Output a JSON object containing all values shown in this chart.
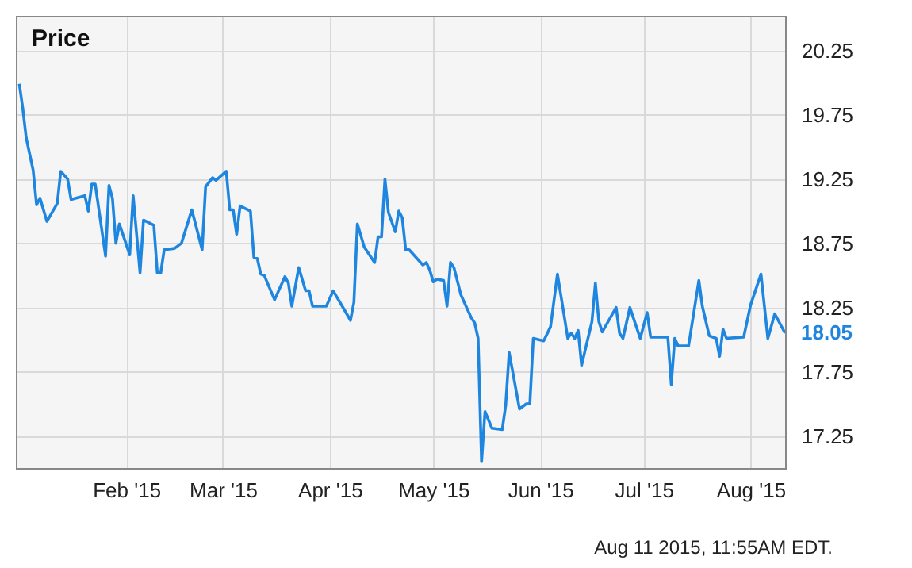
{
  "chart_data": {
    "type": "line",
    "title": "Price",
    "x": [
      "2015-01-01",
      "2015-01-02",
      "2015-01-03",
      "2015-01-05",
      "2015-01-06",
      "2015-01-07",
      "2015-01-09",
      "2015-01-12",
      "2015-01-13",
      "2015-01-15",
      "2015-01-16",
      "2015-01-20",
      "2015-01-21",
      "2015-01-22",
      "2015-01-23",
      "2015-01-26",
      "2015-01-27",
      "2015-01-28",
      "2015-01-29",
      "2015-01-30",
      "2015-02-02",
      "2015-02-03",
      "2015-02-05",
      "2015-02-06",
      "2015-02-09",
      "2015-02-10",
      "2015-02-11",
      "2015-02-12",
      "2015-02-15",
      "2015-02-17",
      "2015-02-20",
      "2015-02-23",
      "2015-02-24",
      "2015-02-26",
      "2015-02-27",
      "2015-03-02",
      "2015-03-03",
      "2015-03-04",
      "2015-03-05",
      "2015-03-06",
      "2015-03-09",
      "2015-03-10",
      "2015-03-11",
      "2015-03-12",
      "2015-03-13",
      "2015-03-16",
      "2015-03-19",
      "2015-03-20",
      "2015-03-21",
      "2015-03-23",
      "2015-03-25",
      "2015-03-26",
      "2015-03-27",
      "2015-03-31",
      "2015-04-02",
      "2015-04-07",
      "2015-04-08",
      "2015-04-09",
      "2015-04-11",
      "2015-04-14",
      "2015-04-15",
      "2015-04-16",
      "2015-04-17",
      "2015-04-18",
      "2015-04-20",
      "2015-04-21",
      "2015-04-22",
      "2015-04-23",
      "2015-04-24",
      "2015-04-28",
      "2015-04-29",
      "2015-04-30",
      "2015-05-01",
      "2015-05-02",
      "2015-05-04",
      "2015-05-05",
      "2015-05-06",
      "2015-05-07",
      "2015-05-09",
      "2015-05-12",
      "2015-05-13",
      "2015-05-14",
      "2015-05-15",
      "2015-05-16",
      "2015-05-18",
      "2015-05-21",
      "2015-05-22",
      "2015-05-23",
      "2015-05-26",
      "2015-05-28",
      "2015-05-29",
      "2015-05-30",
      "2015-06-02",
      "2015-06-04",
      "2015-06-06",
      "2015-06-09",
      "2015-06-10",
      "2015-06-11",
      "2015-06-12",
      "2015-06-13",
      "2015-06-16",
      "2015-06-17",
      "2015-06-18",
      "2015-06-19",
      "2015-06-23",
      "2015-06-24",
      "2015-06-25",
      "2015-06-27",
      "2015-06-30",
      "2015-07-02",
      "2015-07-03",
      "2015-07-08",
      "2015-07-09",
      "2015-07-10",
      "2015-07-11",
      "2015-07-14",
      "2015-07-17",
      "2015-07-18",
      "2015-07-20",
      "2015-07-22",
      "2015-07-23",
      "2015-07-24",
      "2015-07-25",
      "2015-07-30",
      "2015-08-01",
      "2015-08-04",
      "2015-08-06",
      "2015-08-08",
      "2015-08-11"
    ],
    "series": [
      {
        "color": "#1f86e0",
        "values": [
          19.99,
          19.8,
          19.57,
          19.32,
          19.05,
          19.1,
          18.92,
          19.06,
          19.31,
          19.25,
          19.09,
          19.12,
          19.0,
          19.21,
          19.21,
          18.65,
          19.2,
          19.1,
          18.75,
          18.9,
          18.66,
          19.12,
          18.52,
          18.93,
          18.89,
          18.52,
          18.52,
          18.7,
          18.71,
          18.75,
          19.01,
          18.7,
          19.19,
          19.26,
          19.24,
          19.31,
          19.01,
          19.01,
          18.82,
          19.04,
          19.0,
          18.64,
          18.63,
          18.51,
          18.5,
          18.31,
          18.49,
          18.44,
          18.26,
          18.56,
          18.38,
          18.38,
          18.26,
          18.26,
          18.38,
          18.15,
          18.29,
          18.9,
          18.72,
          18.6,
          18.8,
          18.8,
          19.25,
          18.99,
          18.84,
          19.0,
          18.95,
          18.7,
          18.7,
          18.58,
          18.6,
          18.54,
          18.45,
          18.47,
          18.46,
          18.26,
          18.6,
          18.56,
          18.35,
          18.17,
          18.13,
          18.01,
          17.05,
          17.44,
          17.31,
          17.3,
          17.49,
          17.9,
          17.46,
          17.5,
          17.5,
          18.01,
          17.99,
          18.1,
          18.51,
          18.01,
          18.05,
          18.01,
          18.07,
          17.8,
          18.14,
          18.44,
          18.14,
          18.06,
          18.25,
          18.05,
          18.01,
          18.25,
          18.01,
          18.21,
          18.02,
          18.02,
          17.65,
          18.01,
          17.95,
          17.95,
          18.46,
          18.26,
          18.03,
          18.01,
          17.87,
          18.08,
          18.01,
          18.02,
          18.27,
          18.51,
          18.01,
          18.2,
          18.05
        ]
      }
    ],
    "xlim": [
      "2014-12-31",
      "2015-08-11"
    ],
    "xticks": [
      {
        "value": "2015-02-01",
        "label": "Feb '15"
      },
      {
        "value": "2015-03-01",
        "label": "Mar '15"
      },
      {
        "value": "2015-04-01",
        "label": "Apr '15"
      },
      {
        "value": "2015-05-01",
        "label": "May '15"
      },
      {
        "value": "2015-06-01",
        "label": "Jun '15"
      },
      {
        "value": "2015-07-01",
        "label": "Jul '15"
      },
      {
        "value": "2015-08-01",
        "label": "Aug '15"
      }
    ],
    "ylim": [
      17.0,
      20.52
    ],
    "yticks": [
      {
        "value": 17.25,
        "label": "17.25"
      },
      {
        "value": 17.75,
        "label": "17.75"
      },
      {
        "value": 18.25,
        "label": "18.25"
      },
      {
        "value": 18.75,
        "label": "18.75"
      },
      {
        "value": 19.25,
        "label": "19.25"
      },
      {
        "value": 19.75,
        "label": "19.75"
      },
      {
        "value": 20.25,
        "label": "20.25"
      }
    ],
    "grid": true,
    "line_style": "solid",
    "marker": "none",
    "annotations": [
      {
        "text": "18.05",
        "x": "2015-08-11",
        "y": 18.05
      },
      "Aug 11 2015, 11:55AM EDT."
    ]
  }
}
